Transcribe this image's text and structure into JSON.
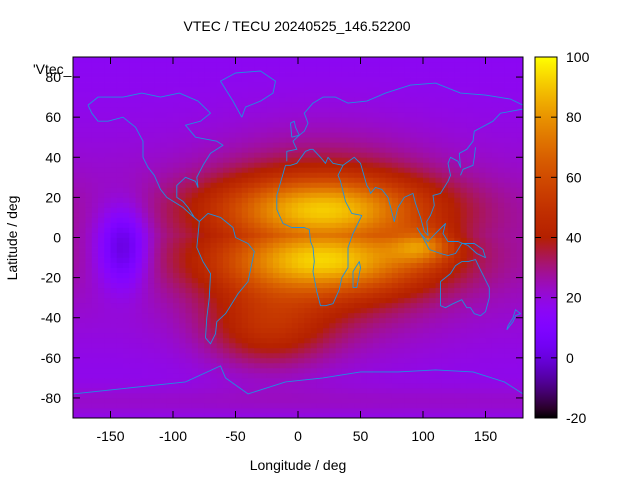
{
  "chart_data": {
    "type": "heatmap",
    "title": "VTEC / TECU 20240525_146.52200",
    "xlabel": "Longitude / deg",
    "ylabel": "Latitude / deg",
    "legend_label": "'Vtec_",
    "xlim": [
      -180,
      180
    ],
    "ylim": [
      -90,
      90
    ],
    "x_ticks": [
      -150,
      -100,
      -50,
      0,
      50,
      100,
      150
    ],
    "y_ticks": [
      -80,
      -60,
      -40,
      -20,
      0,
      20,
      40,
      60,
      80
    ],
    "colorbar": {
      "min": -20,
      "max": 100,
      "ticks": [
        -20,
        0,
        20,
        40,
        60,
        80,
        100
      ],
      "colormap": "gnuplot-heat"
    },
    "features": {
      "day_side_crest_center_lon": 20,
      "anomaly_crest_lats": [
        15,
        -12
      ],
      "peak_vtec_approx": 95,
      "pacific_minimum_approx": -5,
      "pacific_minimum_location": [
        -140,
        -5
      ],
      "background_vtec_approx": 15
    }
  },
  "colors": {
    "coastline": "#1e90e0"
  }
}
